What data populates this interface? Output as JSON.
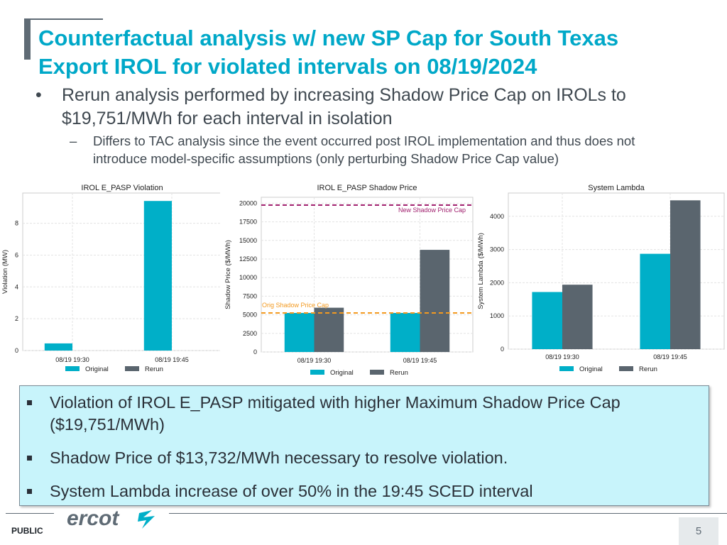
{
  "title": {
    "line1": "Counterfactual analysis w/ new SP Cap for South Texas",
    "line2": "Export IROL for violated intervals on 08/19/2024"
  },
  "bullets": {
    "b1_mark": "•",
    "b1_text": "Rerun analysis performed by increasing Shadow Price Cap on IROLs to $19,751/MWh for each interval in isolation",
    "b2_mark": "–",
    "b2_text": "Differs to TAC analysis since the event occurred post IROL implementation and thus does not introduce model-specific assumptions (only perturbing Shadow Price Cap value)"
  },
  "colors": {
    "original": "#00afc8",
    "rerun": "#5a656e",
    "new_cap_line": "#a0206e",
    "orig_cap_line": "#f39a20"
  },
  "chart_data": [
    {
      "type": "bar",
      "title": "IROL E_PASP Violation",
      "ylabel": "Violation (MW)",
      "xlabel": "",
      "categories": [
        "08/19 19:30",
        "08/19 19:45"
      ],
      "series": [
        {
          "name": "Original",
          "values": [
            0.45,
            9.4
          ]
        },
        {
          "name": "Rerun",
          "values": [
            0,
            0
          ]
        }
      ],
      "ylim": [
        0,
        9.9
      ],
      "yticks": [
        0,
        2,
        4,
        6,
        8
      ],
      "legend": "bottom"
    },
    {
      "type": "bar",
      "title": "IROL E_PASP Shadow Price",
      "ylabel": "Shadow Price ($/MWh)",
      "xlabel": "",
      "categories": [
        "08/19 19:30",
        "08/19 19:45"
      ],
      "series": [
        {
          "name": "Original",
          "values": [
            5251,
            5251
          ]
        },
        {
          "name": "Rerun",
          "values": [
            5950,
            13732
          ]
        }
      ],
      "ylim": [
        0,
        20800
      ],
      "yticks": [
        0,
        2500,
        5000,
        7500,
        10000,
        12500,
        15000,
        17500,
        20000
      ],
      "hlines": [
        {
          "label": "New Shadow Price Cap",
          "value": 19751
        },
        {
          "label": "Orig Shadow Price Cap",
          "value": 5251
        }
      ],
      "legend": "bottom"
    },
    {
      "type": "bar",
      "title": "System Lambda",
      "ylabel": "System Lambda ($/MWh)",
      "xlabel": "",
      "categories": [
        "08/19 19:30",
        "08/19 19:45"
      ],
      "series": [
        {
          "name": "Original",
          "values": [
            1720,
            2870
          ]
        },
        {
          "name": "Rerun",
          "values": [
            1940,
            4480
          ]
        }
      ],
      "ylim": [
        0,
        4700
      ],
      "yticks": [
        0,
        1000,
        2000,
        3000,
        4000
      ],
      "legend": "bottom"
    }
  ],
  "callout": {
    "items": [
      "Violation of IROL E_PASP mitigated with higher Maximum Shadow Price Cap ($19,751/MWh)",
      "Shadow Price of $13,732/MWh necessary to resolve violation.",
      "System Lambda increase of over 50% in the 19:45 SCED interval"
    ]
  },
  "footer": {
    "logo_text": "ercot",
    "label": "PUBLIC",
    "page": "5"
  }
}
